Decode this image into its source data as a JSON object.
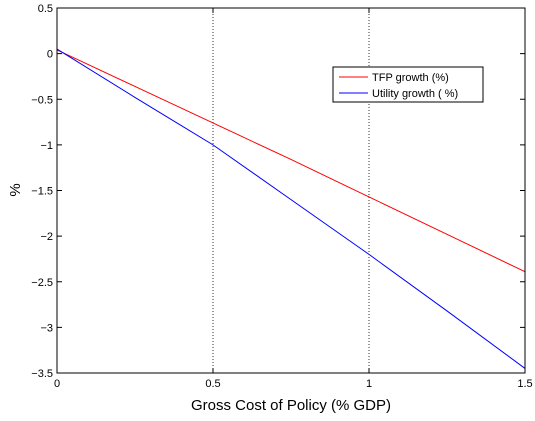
{
  "chart_data": {
    "type": "line",
    "title": "",
    "xlabel": "Gross Cost of Policy (% GDP)",
    "ylabel": "%",
    "xlim": [
      0,
      1.5
    ],
    "ylim": [
      -3.5,
      0.5
    ],
    "x_ticks": [
      0,
      0.5,
      1,
      1.5
    ],
    "x_tick_labels": [
      "0",
      "0.5",
      "1",
      "1.5"
    ],
    "y_ticks": [
      0.5,
      0,
      -0.5,
      -1,
      -1.5,
      -2,
      -2.5,
      -3,
      -3.5
    ],
    "y_tick_labels": [
      "0.5",
      "0",
      "−0.5",
      "−1",
      "−1.5",
      "−2",
      "−2.5",
      "−3",
      "−3.5"
    ],
    "vertical_dotted_gridlines_at": [
      0.5,
      1
    ],
    "grid": "vertical dotted lines at 0.5 and 1",
    "legend_position": "top-right",
    "series": [
      {
        "name": "TFP growth (%)",
        "color": "#ff0000",
        "x": [
          0,
          0.25,
          0.5,
          0.75,
          1,
          1.25,
          1.5
        ],
        "y": [
          0.04,
          -0.36,
          -0.76,
          -1.16,
          -1.57,
          -1.98,
          -2.39
        ]
      },
      {
        "name": "Utility growth ( %)",
        "color": "#0000ff",
        "x": [
          0,
          0.25,
          0.5,
          0.75,
          1,
          1.25,
          1.5
        ],
        "y": [
          0.05,
          -0.48,
          -1.0,
          -1.6,
          -2.2,
          -2.82,
          -3.45
        ]
      }
    ]
  }
}
